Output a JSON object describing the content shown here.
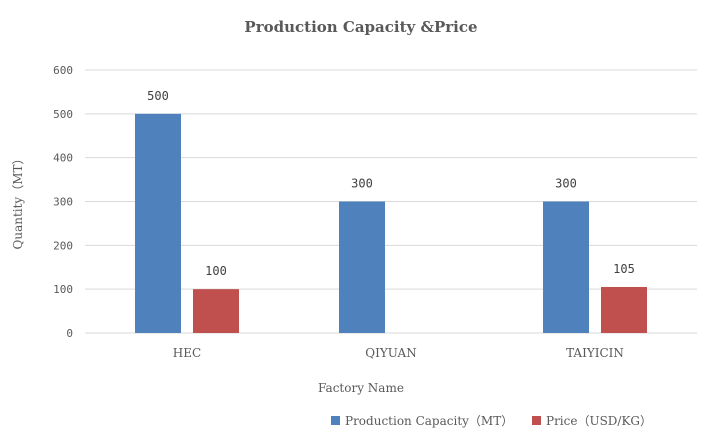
{
  "chart_data": {
    "type": "bar",
    "title": "Production Capacity &Price",
    "xlabel": "Factory Name",
    "ylabel": "Quantity（MT）",
    "categories": [
      "HEC",
      "QIYUAN",
      "TAIYICIN"
    ],
    "series": [
      {
        "name": "Production Capacity（MT）",
        "color": "#4F81BD",
        "values": [
          500,
          300,
          300
        ]
      },
      {
        "name": "Price（USD/KG）",
        "color": "#C0504D",
        "values": [
          100,
          null,
          105
        ]
      }
    ],
    "ylim": [
      0,
      600
    ],
    "yticks": [
      0,
      100,
      200,
      300,
      400,
      500,
      600
    ],
    "grid": true,
    "legend": "bottom"
  }
}
